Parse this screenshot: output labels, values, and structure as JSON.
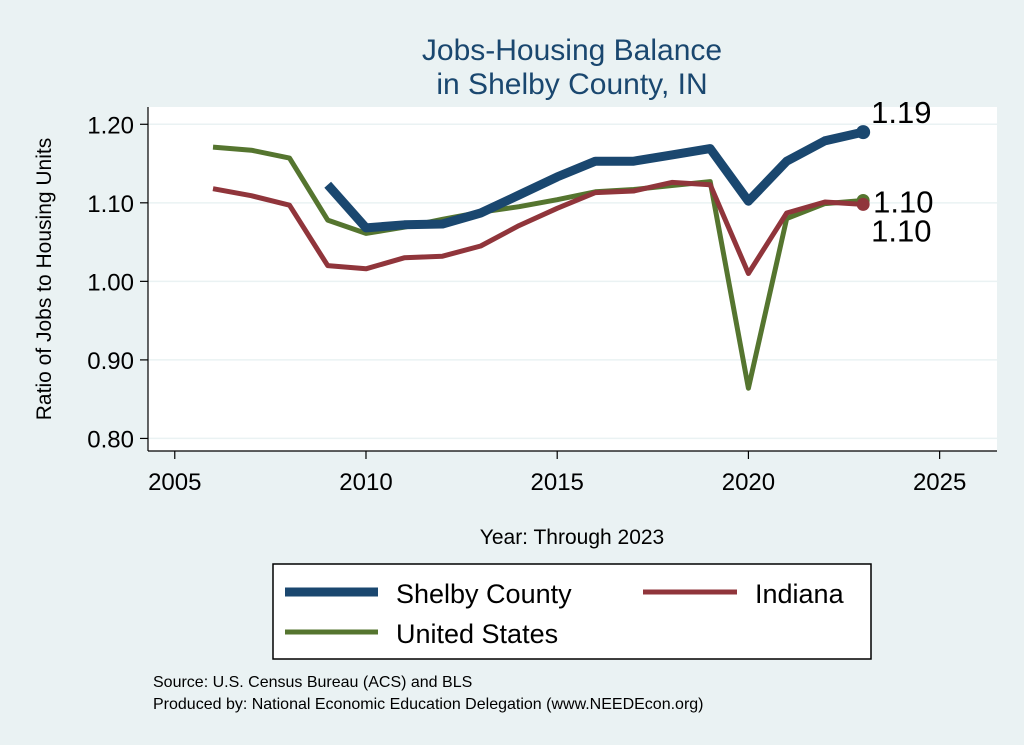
{
  "chart_data": {
    "type": "line",
    "title": [
      "Jobs-Housing Balance",
      "in Shelby County, IN"
    ],
    "xlabel": "Year: Through 2023",
    "ylabel": "Ratio of Jobs to Housing Units",
    "xlim": [
      2004.3,
      2026.5
    ],
    "ylim": [
      0.784,
      1.222
    ],
    "xticks": [
      2005,
      2010,
      2015,
      2020,
      2025
    ],
    "yticks": [
      0.8,
      0.9,
      1.0,
      1.1,
      1.2
    ],
    "ytick_labels": [
      "0.80",
      "0.90",
      "1.00",
      "1.10",
      "1.20"
    ],
    "grid": true,
    "legend_position": "bottom",
    "series": [
      {
        "name": "Shelby County",
        "color": "#1a476f",
        "width": 9,
        "x": [
          2009,
          2010,
          2011,
          2012,
          2013,
          2014,
          2015,
          2016,
          2017,
          2018,
          2019,
          2020,
          2021,
          2022,
          2023
        ],
        "y": [
          1.123,
          1.068,
          1.072,
          1.073,
          1.087,
          1.11,
          1.133,
          1.153,
          1.153,
          1.161,
          1.169,
          1.102,
          1.153,
          1.179,
          1.19
        ],
        "end_label": "1.19"
      },
      {
        "name": "Indiana",
        "color": "#90353b",
        "width": 5,
        "x": [
          2006,
          2007,
          2008,
          2009,
          2010,
          2011,
          2012,
          2013,
          2014,
          2015,
          2016,
          2017,
          2018,
          2019,
          2020,
          2021,
          2022,
          2023
        ],
        "y": [
          1.118,
          1.109,
          1.097,
          1.02,
          1.016,
          1.03,
          1.032,
          1.045,
          1.071,
          1.093,
          1.113,
          1.115,
          1.126,
          1.123,
          1.01,
          1.087,
          1.101,
          1.098
        ],
        "end_label": "1.10"
      },
      {
        "name": "United States",
        "color": "#55752f",
        "width": 5,
        "x": [
          2006,
          2007,
          2008,
          2009,
          2010,
          2011,
          2012,
          2013,
          2014,
          2015,
          2016,
          2017,
          2018,
          2019,
          2020,
          2021,
          2022,
          2023
        ],
        "y": [
          1.171,
          1.167,
          1.157,
          1.078,
          1.061,
          1.069,
          1.079,
          1.088,
          1.095,
          1.104,
          1.114,
          1.117,
          1.122,
          1.127,
          0.864,
          1.08,
          1.099,
          1.103
        ],
        "end_label": "1.10"
      }
    ],
    "source_lines": [
      "Source: U.S. Census Bureau (ACS) and BLS",
      "Produced by: National Economic Education Delegation (www.NEEDEcon.org)"
    ]
  }
}
